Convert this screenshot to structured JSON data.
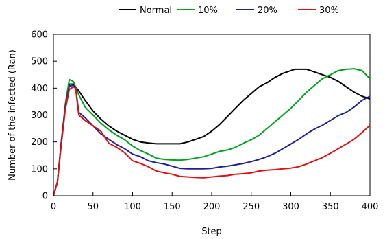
{
  "chart_data": {
    "type": "line",
    "xlabel": "Step",
    "ylabel": "Number of the infected (Ran)",
    "xlim": [
      0,
      400
    ],
    "ylim": [
      0,
      600
    ],
    "xticks": [
      0,
      50,
      100,
      150,
      200,
      250,
      300,
      350,
      400
    ],
    "yticks": [
      0,
      100,
      200,
      300,
      400,
      500,
      600
    ],
    "grid": false,
    "legend_position": "top",
    "series": [
      {
        "name": "Normal",
        "color": "#000000",
        "points": [
          [
            0,
            0
          ],
          [
            5,
            50
          ],
          [
            10,
            200
          ],
          [
            15,
            330
          ],
          [
            20,
            415
          ],
          [
            25,
            415
          ],
          [
            28,
            405
          ],
          [
            32,
            390
          ],
          [
            40,
            355
          ],
          [
            50,
            315
          ],
          [
            60,
            285
          ],
          [
            70,
            260
          ],
          [
            80,
            240
          ],
          [
            90,
            225
          ],
          [
            100,
            210
          ],
          [
            110,
            200
          ],
          [
            120,
            196
          ],
          [
            130,
            193
          ],
          [
            140,
            193
          ],
          [
            150,
            193
          ],
          [
            160,
            193
          ],
          [
            170,
            200
          ],
          [
            180,
            210
          ],
          [
            190,
            220
          ],
          [
            200,
            240
          ],
          [
            210,
            265
          ],
          [
            220,
            295
          ],
          [
            230,
            325
          ],
          [
            240,
            355
          ],
          [
            250,
            380
          ],
          [
            260,
            405
          ],
          [
            270,
            420
          ],
          [
            280,
            440
          ],
          [
            290,
            455
          ],
          [
            300,
            465
          ],
          [
            305,
            470
          ],
          [
            320,
            470
          ],
          [
            330,
            460
          ],
          [
            340,
            450
          ],
          [
            350,
            440
          ],
          [
            360,
            425
          ],
          [
            370,
            405
          ],
          [
            380,
            385
          ],
          [
            390,
            370
          ],
          [
            400,
            360
          ]
        ]
      },
      {
        "name": "10%",
        "color": "#00a020",
        "points": [
          [
            0,
            0
          ],
          [
            5,
            50
          ],
          [
            10,
            200
          ],
          [
            15,
            340
          ],
          [
            20,
            432
          ],
          [
            25,
            425
          ],
          [
            28,
            405
          ],
          [
            32,
            375
          ],
          [
            40,
            330
          ],
          [
            50,
            300
          ],
          [
            60,
            270
          ],
          [
            70,
            245
          ],
          [
            80,
            225
          ],
          [
            90,
            208
          ],
          [
            100,
            185
          ],
          [
            110,
            168
          ],
          [
            120,
            155
          ],
          [
            130,
            140
          ],
          [
            140,
            135
          ],
          [
            150,
            133
          ],
          [
            160,
            132
          ],
          [
            170,
            135
          ],
          [
            180,
            140
          ],
          [
            190,
            145
          ],
          [
            200,
            155
          ],
          [
            210,
            165
          ],
          [
            220,
            170
          ],
          [
            230,
            180
          ],
          [
            240,
            195
          ],
          [
            250,
            208
          ],
          [
            260,
            225
          ],
          [
            270,
            250
          ],
          [
            280,
            275
          ],
          [
            290,
            300
          ],
          [
            300,
            325
          ],
          [
            310,
            355
          ],
          [
            320,
            385
          ],
          [
            330,
            410
          ],
          [
            340,
            435
          ],
          [
            350,
            450
          ],
          [
            360,
            465
          ],
          [
            370,
            470
          ],
          [
            380,
            472
          ],
          [
            390,
            465
          ],
          [
            400,
            435
          ]
        ]
      },
      {
        "name": "20%",
        "color": "#202090",
        "points": [
          [
            0,
            0
          ],
          [
            5,
            50
          ],
          [
            10,
            200
          ],
          [
            15,
            330
          ],
          [
            20,
            408
          ],
          [
            25,
            410
          ],
          [
            28,
            405
          ],
          [
            32,
            310
          ],
          [
            40,
            290
          ],
          [
            50,
            260
          ],
          [
            60,
            230
          ],
          [
            70,
            210
          ],
          [
            80,
            190
          ],
          [
            90,
            175
          ],
          [
            100,
            155
          ],
          [
            110,
            145
          ],
          [
            120,
            130
          ],
          [
            130,
            123
          ],
          [
            140,
            118
          ],
          [
            150,
            110
          ],
          [
            160,
            102
          ],
          [
            170,
            100
          ],
          [
            180,
            100
          ],
          [
            190,
            100
          ],
          [
            200,
            102
          ],
          [
            210,
            107
          ],
          [
            220,
            110
          ],
          [
            230,
            115
          ],
          [
            240,
            120
          ],
          [
            250,
            127
          ],
          [
            260,
            135
          ],
          [
            270,
            145
          ],
          [
            280,
            158
          ],
          [
            290,
            175
          ],
          [
            300,
            192
          ],
          [
            310,
            210
          ],
          [
            320,
            230
          ],
          [
            330,
            248
          ],
          [
            340,
            262
          ],
          [
            350,
            280
          ],
          [
            360,
            298
          ],
          [
            370,
            310
          ],
          [
            380,
            330
          ],
          [
            390,
            355
          ],
          [
            400,
            370
          ]
        ]
      },
      {
        "name": "30%",
        "color": "#e01010",
        "points": [
          [
            0,
            0
          ],
          [
            5,
            50
          ],
          [
            10,
            190
          ],
          [
            15,
            320
          ],
          [
            20,
            395
          ],
          [
            25,
            405
          ],
          [
            28,
            400
          ],
          [
            32,
            300
          ],
          [
            40,
            280
          ],
          [
            50,
            260
          ],
          [
            60,
            240
          ],
          [
            70,
            195
          ],
          [
            80,
            180
          ],
          [
            90,
            160
          ],
          [
            100,
            130
          ],
          [
            110,
            120
          ],
          [
            120,
            108
          ],
          [
            130,
            92
          ],
          [
            140,
            85
          ],
          [
            150,
            80
          ],
          [
            160,
            72
          ],
          [
            170,
            70
          ],
          [
            180,
            68
          ],
          [
            190,
            67
          ],
          [
            200,
            70
          ],
          [
            210,
            73
          ],
          [
            220,
            75
          ],
          [
            230,
            80
          ],
          [
            240,
            82
          ],
          [
            250,
            85
          ],
          [
            260,
            92
          ],
          [
            270,
            95
          ],
          [
            280,
            97
          ],
          [
            290,
            100
          ],
          [
            300,
            103
          ],
          [
            310,
            108
          ],
          [
            320,
            118
          ],
          [
            330,
            130
          ],
          [
            340,
            142
          ],
          [
            350,
            158
          ],
          [
            360,
            175
          ],
          [
            370,
            192
          ],
          [
            380,
            210
          ],
          [
            390,
            235
          ],
          [
            400,
            262
          ]
        ]
      }
    ]
  }
}
